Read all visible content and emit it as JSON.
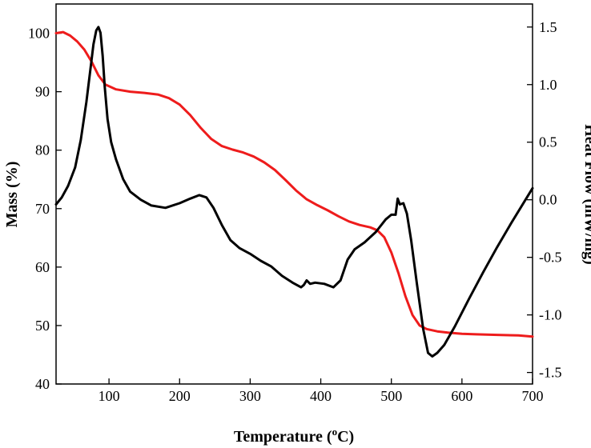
{
  "chart_data": {
    "type": "line",
    "xlabel": "Temperature (",
    "xlabel_superscript": "o",
    "xlabel_suffix": "C)",
    "ylabel_left": "Mass (%)",
    "ylabel_right": "Heat Flow (mW/mg)",
    "xlim": [
      25,
      700
    ],
    "ylim_left": [
      40,
      105
    ],
    "ylim_right": [
      -1.6,
      1.7
    ],
    "x_ticks": [
      100,
      200,
      300,
      400,
      500,
      600,
      700
    ],
    "y_left_ticks": [
      40,
      50,
      60,
      70,
      80,
      90,
      100
    ],
    "y_right_ticks": [
      -1.5,
      -1.0,
      -0.5,
      0.0,
      0.5,
      1.0,
      1.5
    ],
    "y_right_tick_labels": [
      "-1.5",
      "-1.0",
      "-0.5",
      "0.0",
      "0.5",
      "1.0",
      "1.5"
    ],
    "grid": false,
    "series": [
      {
        "axis": "left",
        "color": "#ee1c1c",
        "x": [
          25,
          35,
          45,
          55,
          65,
          75,
          85,
          95,
          110,
          130,
          150,
          170,
          185,
          200,
          215,
          230,
          245,
          260,
          275,
          290,
          305,
          320,
          335,
          350,
          365,
          380,
          395,
          410,
          425,
          440,
          455,
          470,
          480,
          490,
          500,
          510,
          520,
          530,
          540,
          550,
          565,
          580,
          600,
          620,
          650,
          680,
          700
        ],
        "y": [
          100.0,
          100.2,
          99.6,
          98.6,
          97.2,
          95.2,
          92.8,
          91.2,
          90.4,
          90.0,
          89.8,
          89.5,
          88.9,
          87.8,
          86.0,
          83.8,
          81.9,
          80.7,
          80.1,
          79.6,
          78.9,
          77.9,
          76.6,
          74.9,
          73.1,
          71.6,
          70.6,
          69.7,
          68.7,
          67.8,
          67.2,
          66.8,
          66.3,
          65.1,
          62.5,
          59.0,
          55.0,
          51.8,
          50.0,
          49.4,
          49.0,
          48.8,
          48.6,
          48.5,
          48.4,
          48.3,
          48.1
        ]
      },
      {
        "axis": "right",
        "color": "#000000",
        "x": [
          25,
          33,
          42,
          52,
          60,
          68,
          74,
          78,
          82,
          85,
          88,
          91,
          94,
          98,
          103,
          110,
          120,
          130,
          145,
          160,
          180,
          200,
          215,
          228,
          238,
          248,
          260,
          272,
          285,
          300,
          315,
          330,
          345,
          360,
          372,
          376,
          380,
          385,
          392,
          405,
          418,
          428,
          438,
          448,
          462,
          478,
          492,
          500,
          506,
          509,
          512,
          517,
          522,
          528,
          536,
          545,
          552,
          558,
          565,
          575,
          590,
          610,
          630,
          650,
          670,
          690,
          700
        ],
        "y": [
          -0.04,
          0.02,
          0.12,
          0.28,
          0.52,
          0.85,
          1.15,
          1.35,
          1.47,
          1.5,
          1.45,
          1.25,
          0.98,
          0.7,
          0.5,
          0.35,
          0.18,
          0.07,
          0.0,
          -0.05,
          -0.07,
          -0.03,
          0.01,
          0.04,
          0.02,
          -0.07,
          -0.22,
          -0.35,
          -0.42,
          -0.47,
          -0.53,
          -0.58,
          -0.66,
          -0.72,
          -0.76,
          -0.74,
          -0.7,
          -0.73,
          -0.72,
          -0.73,
          -0.76,
          -0.7,
          -0.52,
          -0.43,
          -0.37,
          -0.28,
          -0.17,
          -0.13,
          -0.13,
          0.01,
          -0.04,
          -0.03,
          -0.12,
          -0.35,
          -0.72,
          -1.12,
          -1.33,
          -1.36,
          -1.33,
          -1.26,
          -1.1,
          -0.86,
          -0.63,
          -0.41,
          -0.2,
          0.0,
          0.1
        ]
      }
    ]
  }
}
